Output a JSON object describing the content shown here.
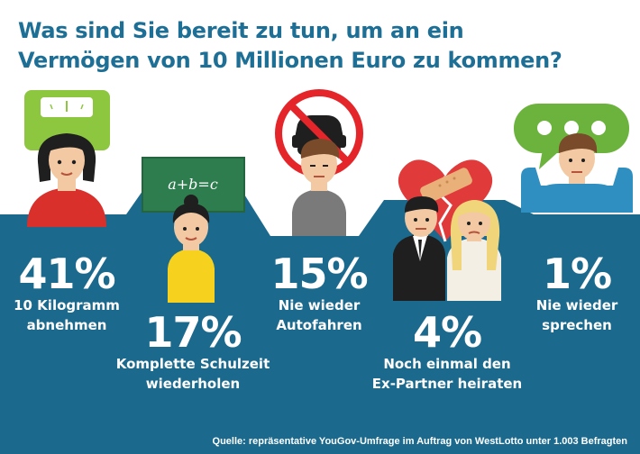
{
  "title": {
    "line1": "Was sind Sie bereit zu tun, um an ein",
    "line2": "Vermögen von 10 Millionen Euro zu kommen?"
  },
  "colors": {
    "title": "#1d6f96",
    "band": "#1b6a8e",
    "text_on_band": "#ffffff",
    "scale_green": "#8dc63f",
    "chalkboard": "#2e7d4e",
    "no_sign_red": "#e4252a",
    "heart_red": "#e03a3a",
    "speech_green": "#6cb33e"
  },
  "icons": [
    "scale-icon",
    "chalkboard-icon",
    "no-car-sign-icon",
    "broken-heart-icon",
    "speech-bubble-icon"
  ],
  "chart_data": {
    "type": "bar",
    "categories": [
      "10 Kilogramm abnehmen",
      "Komplette Schulzeit wiederholen",
      "Nie wieder Autofahren",
      "Noch einmal den Ex-Partner heiraten",
      "Nie wieder sprechen"
    ],
    "values": [
      41,
      17,
      15,
      4,
      1
    ],
    "unit": "%",
    "items": [
      {
        "value": 41,
        "pct_label": "41%",
        "label_line1": "10 Kilogramm",
        "label_line2": "abnehmen"
      },
      {
        "value": 17,
        "pct_label": "17%",
        "label_line1": "Komplette Schulzeit",
        "label_line2": "wiederholen"
      },
      {
        "value": 15,
        "pct_label": "15%",
        "label_line1": "Nie wieder",
        "label_line2": "Autofahren"
      },
      {
        "value": 4,
        "pct_label": "4%",
        "label_line1": "Noch einmal den",
        "label_line2": "Ex-Partner heiraten"
      },
      {
        "value": 1,
        "pct_label": "1%",
        "label_line1": "Nie wieder",
        "label_line2": "sprechen"
      }
    ],
    "chalkboard_text": "a+b=c"
  },
  "source": "Quelle: repräsentative YouGov-Umfrage im Auftrag von WestLotto unter 1.003 Befragten"
}
